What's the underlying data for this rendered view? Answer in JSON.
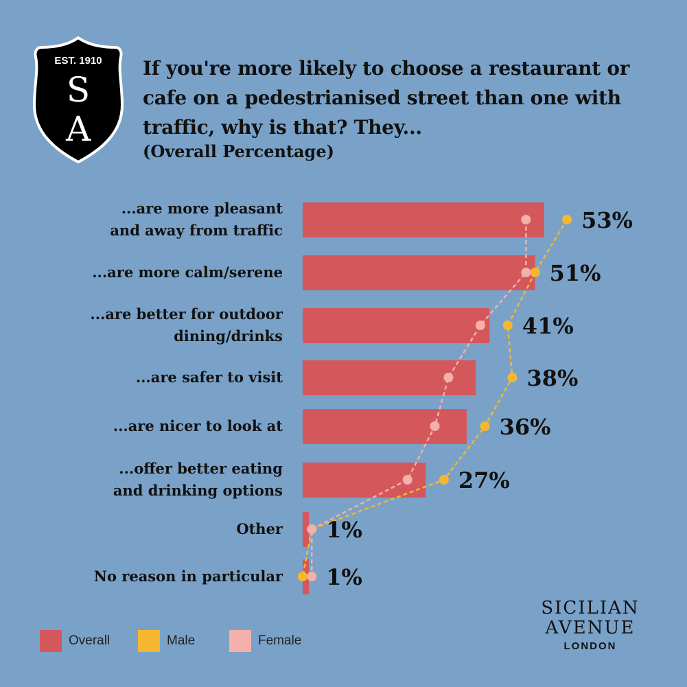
{
  "logo": {
    "est": "EST. 1910",
    "letters": [
      "S",
      "A"
    ]
  },
  "header": {
    "title": "If you're more likely to choose a restaurant or cafe on a pedestrianised street than one with traffic, why is that? They...",
    "subtitle": "(Overall Percentage)"
  },
  "chart_data": {
    "type": "bar",
    "orientation": "horizontal",
    "title": "If you're more likely to choose a restaurant or cafe on a pedestrianised street than one with traffic, why is that? They...",
    "subtitle": "(Overall Percentage)",
    "categories": [
      [
        "...are more pleasant",
        "and away from traffic"
      ],
      [
        "...are more calm/serene"
      ],
      [
        "...are better for outdoor",
        "dining/drinks"
      ],
      [
        "...are safer to visit"
      ],
      [
        "...are nicer to look at"
      ],
      [
        "...offer better eating",
        "and drinking options"
      ],
      [
        "Other"
      ],
      [
        "No reason in particular"
      ]
    ],
    "series": [
      {
        "name": "Overall",
        "type": "bar",
        "color": "#d4575c",
        "values": [
          53,
          51,
          41,
          38,
          36,
          27,
          1,
          1
        ]
      },
      {
        "name": "Male",
        "type": "dot-line",
        "color": "#f5b730",
        "values": [
          58,
          51,
          45,
          46,
          40,
          31,
          2,
          0
        ]
      },
      {
        "name": "Female",
        "type": "dot-line",
        "color": "#f4b0aa",
        "values": [
          49,
          49,
          39,
          32,
          29,
          23,
          2,
          2
        ]
      }
    ],
    "data_labels": [
      "53%",
      "51%",
      "41%",
      "38%",
      "36%",
      "27%",
      "1%",
      "1%"
    ],
    "xlim": [
      0,
      60
    ],
    "grid": false,
    "legend": "bottom-left"
  },
  "legend": [
    {
      "label": "Overall",
      "color": "#d4575c"
    },
    {
      "label": "Male",
      "color": "#f5b730"
    },
    {
      "label": "Female",
      "color": "#f4b0aa"
    }
  ],
  "brand": {
    "line1": "SICILIAN",
    "line2": "AVENUE",
    "line3": "LONDON"
  }
}
